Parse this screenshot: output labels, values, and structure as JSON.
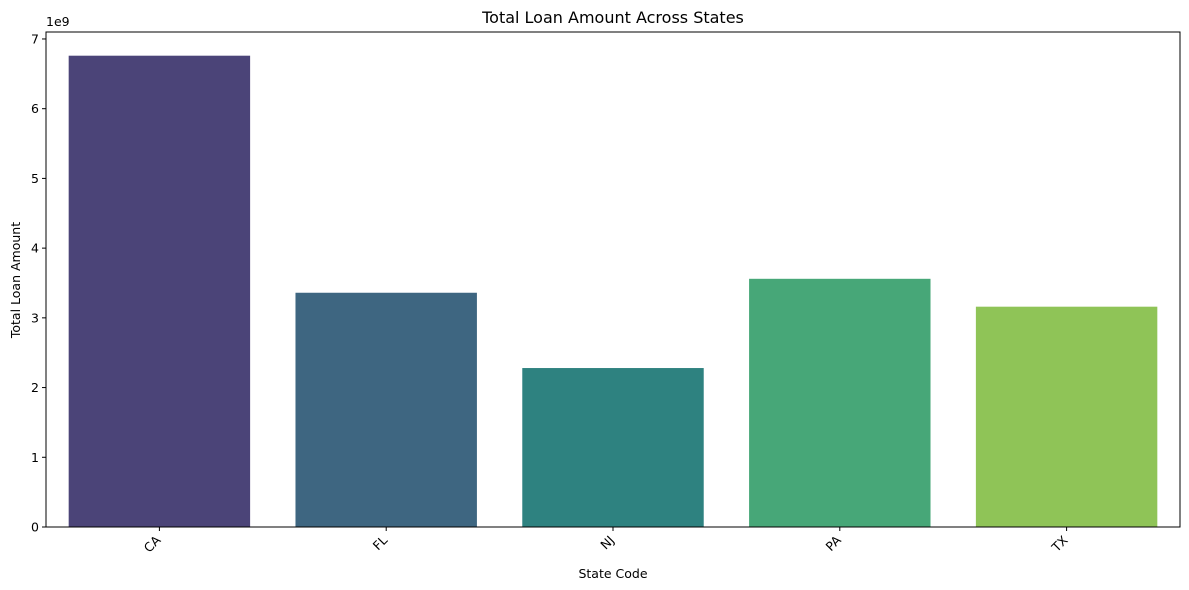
{
  "chart_data": {
    "type": "bar",
    "title": "Total Loan Amount Across States",
    "xlabel": "State Code",
    "ylabel": "Total Loan Amount",
    "y_scale_label": "1e9",
    "categories": [
      "CA",
      "FL",
      "NJ",
      "PA",
      "TX"
    ],
    "values": [
      6760000000,
      3360000000,
      2280000000,
      3560000000,
      3160000000
    ],
    "colors": [
      "#4b4478",
      "#3e6681",
      "#2e8280",
      "#47a778",
      "#8fc457"
    ],
    "ylim": [
      0,
      7100000000
    ],
    "yticks": [
      0,
      1,
      2,
      3,
      4,
      5,
      6,
      7
    ],
    "ytick_labels": [
      "0",
      "1",
      "2",
      "3",
      "4",
      "5",
      "6",
      "7"
    ],
    "grid": false,
    "legend": "none"
  }
}
